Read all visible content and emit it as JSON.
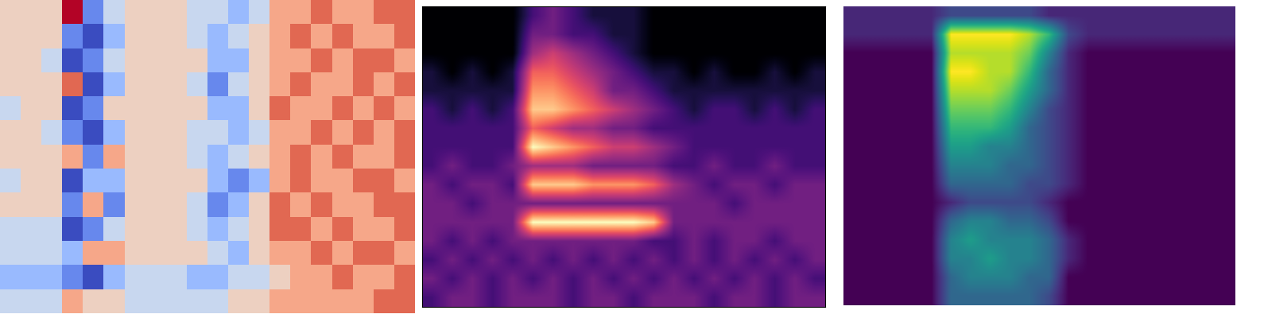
{
  "chart_data": [
    {
      "type": "heatmap",
      "color": "coolwarm",
      "tick_labels": false,
      "cells": [
        [
          6,
          6,
          6,
          9,
          3,
          5,
          6,
          6,
          6,
          5,
          5,
          4,
          5,
          7,
          7,
          8,
          7,
          7,
          8,
          8
        ],
        [
          6,
          6,
          6,
          3,
          2,
          4,
          6,
          6,
          6,
          5,
          4,
          5,
          6,
          7,
          8,
          7,
          8,
          7,
          7,
          8
        ],
        [
          6,
          6,
          5,
          2,
          3,
          5,
          6,
          6,
          6,
          6,
          4,
          4,
          6,
          7,
          7,
          8,
          7,
          8,
          8,
          7
        ],
        [
          6,
          6,
          6,
          8,
          2,
          4,
          6,
          6,
          6,
          5,
          3,
          5,
          6,
          7,
          8,
          7,
          7,
          8,
          7,
          8
        ],
        [
          5,
          6,
          6,
          2,
          3,
          6,
          6,
          6,
          6,
          6,
          4,
          4,
          6,
          8,
          7,
          7,
          8,
          7,
          8,
          7
        ],
        [
          6,
          6,
          5,
          3,
          2,
          4,
          6,
          6,
          6,
          5,
          5,
          4,
          5,
          7,
          7,
          8,
          7,
          8,
          7,
          8
        ],
        [
          6,
          6,
          6,
          7,
          3,
          7,
          6,
          6,
          6,
          5,
          4,
          5,
          6,
          7,
          8,
          7,
          8,
          7,
          7,
          8
        ],
        [
          5,
          6,
          6,
          2,
          4,
          4,
          6,
          6,
          6,
          6,
          4,
          3,
          4,
          7,
          8,
          7,
          7,
          8,
          8,
          7
        ],
        [
          6,
          6,
          6,
          3,
          7,
          3,
          6,
          6,
          6,
          5,
          3,
          4,
          6,
          8,
          7,
          8,
          7,
          7,
          8,
          8
        ],
        [
          5,
          5,
          5,
          2,
          3,
          5,
          6,
          6,
          6,
          5,
          4,
          5,
          6,
          8,
          8,
          7,
          8,
          7,
          7,
          8
        ],
        [
          5,
          5,
          5,
          4,
          7,
          7,
          6,
          6,
          6,
          6,
          5,
          4,
          6,
          7,
          7,
          8,
          7,
          8,
          8,
          7
        ],
        [
          4,
          4,
          4,
          3,
          2,
          4,
          5,
          5,
          5,
          4,
          4,
          5,
          5,
          6,
          7,
          7,
          8,
          7,
          7,
          8
        ],
        [
          5,
          5,
          5,
          7,
          6,
          6,
          5,
          5,
          5,
          5,
          5,
          6,
          6,
          7,
          7,
          7,
          7,
          7,
          8,
          8
        ]
      ]
    },
    {
      "type": "heatmap",
      "color": "magma",
      "tick_labels": false,
      "cells": [
        [
          0,
          0,
          0,
          0,
          0,
          2,
          3,
          2,
          1,
          1,
          1,
          0,
          0,
          0,
          0,
          0,
          0,
          0,
          0,
          0
        ],
        [
          0,
          0,
          0,
          0,
          0,
          3,
          3,
          2,
          2,
          1,
          1,
          0,
          0,
          0,
          0,
          0,
          0,
          0,
          0,
          0
        ],
        [
          0,
          0,
          0,
          0,
          0,
          4,
          5,
          4,
          3,
          2,
          1,
          0,
          0,
          0,
          0,
          0,
          0,
          0,
          0,
          0
        ],
        [
          1,
          0,
          1,
          0,
          1,
          6,
          6,
          5,
          4,
          3,
          2,
          1,
          1,
          0,
          1,
          0,
          0,
          1,
          0,
          1
        ],
        [
          1,
          1,
          1,
          1,
          1,
          7,
          7,
          6,
          5,
          3,
          3,
          2,
          1,
          1,
          1,
          1,
          1,
          1,
          1,
          1
        ],
        [
          2,
          1,
          2,
          1,
          2,
          8,
          8,
          7,
          6,
          5,
          4,
          3,
          2,
          1,
          2,
          2,
          1,
          2,
          1,
          2
        ],
        [
          2,
          2,
          2,
          2,
          2,
          6,
          5,
          4,
          4,
          3,
          3,
          2,
          2,
          2,
          2,
          2,
          2,
          2,
          2,
          2
        ],
        [
          2,
          2,
          2,
          2,
          2,
          9,
          8,
          7,
          6,
          5,
          5,
          4,
          3,
          2,
          2,
          2,
          2,
          2,
          2,
          2
        ],
        [
          2,
          3,
          2,
          2,
          3,
          4,
          4,
          4,
          3,
          3,
          3,
          3,
          2,
          2,
          3,
          2,
          2,
          3,
          2,
          2
        ],
        [
          3,
          2,
          3,
          3,
          2,
          8,
          8,
          8,
          7,
          7,
          7,
          6,
          4,
          3,
          2,
          3,
          3,
          2,
          3,
          3
        ],
        [
          3,
          3,
          2,
          3,
          3,
          3,
          3,
          3,
          3,
          3,
          3,
          3,
          3,
          3,
          3,
          2,
          3,
          3,
          3,
          3
        ],
        [
          3,
          3,
          3,
          3,
          3,
          9,
          9,
          9,
          9,
          9,
          9,
          8,
          3,
          3,
          3,
          3,
          3,
          3,
          3,
          3
        ],
        [
          3,
          2,
          3,
          2,
          3,
          3,
          3,
          3,
          3,
          3,
          3,
          2,
          2,
          3,
          2,
          3,
          3,
          2,
          3,
          3
        ],
        [
          2,
          3,
          2,
          3,
          2,
          3,
          2,
          3,
          2,
          3,
          2,
          3,
          2,
          3,
          2,
          3,
          2,
          3,
          2,
          3
        ],
        [
          3,
          2,
          3,
          2,
          3,
          2,
          3,
          2,
          3,
          2,
          3,
          2,
          3,
          2,
          3,
          2,
          3,
          2,
          3,
          2
        ],
        [
          2,
          3,
          3,
          2,
          3,
          3,
          3,
          2,
          3,
          3,
          2,
          3,
          3,
          3,
          2,
          3,
          3,
          2,
          3,
          3
        ]
      ]
    },
    {
      "type": "heatmap",
      "color": "viridis",
      "tick_labels": false,
      "cells": [
        [
          1,
          1,
          1,
          1,
          1,
          2,
          2,
          2,
          2,
          2,
          1,
          1,
          1,
          1,
          1,
          1,
          1,
          1,
          1,
          1
        ],
        [
          1,
          1,
          1,
          1,
          1,
          9,
          9,
          9,
          9,
          8,
          6,
          2,
          1,
          1,
          1,
          1,
          1,
          1,
          1,
          1
        ],
        [
          0,
          0,
          0,
          0,
          0,
          8,
          8,
          8,
          8,
          7,
          4,
          1,
          0,
          0,
          0,
          0,
          0,
          0,
          0,
          0
        ],
        [
          0,
          0,
          0,
          0,
          0,
          9,
          9,
          8,
          8,
          6,
          3,
          1,
          0,
          0,
          0,
          0,
          0,
          0,
          0,
          0
        ],
        [
          0,
          0,
          0,
          0,
          0,
          8,
          8,
          8,
          7,
          5,
          3,
          1,
          0,
          0,
          0,
          0,
          0,
          0,
          0,
          0
        ],
        [
          0,
          0,
          0,
          0,
          0,
          7,
          7,
          7,
          6,
          4,
          2,
          1,
          0,
          0,
          0,
          0,
          0,
          0,
          0,
          0
        ],
        [
          0,
          0,
          0,
          0,
          0,
          6,
          6,
          6,
          5,
          3,
          2,
          1,
          0,
          0,
          0,
          0,
          0,
          0,
          0,
          0
        ],
        [
          0,
          0,
          0,
          0,
          0,
          5,
          5,
          4,
          4,
          3,
          2,
          1,
          0,
          0,
          0,
          0,
          0,
          0,
          0,
          0
        ],
        [
          0,
          0,
          0,
          0,
          0,
          4,
          4,
          4,
          3,
          3,
          2,
          1,
          0,
          0,
          0,
          0,
          0,
          0,
          0,
          0
        ],
        [
          0,
          0,
          0,
          0,
          0,
          3,
          3,
          3,
          3,
          2,
          2,
          1,
          0,
          0,
          0,
          0,
          0,
          0,
          0,
          0
        ],
        [
          0,
          0,
          0,
          0,
          0,
          1,
          2,
          2,
          2,
          2,
          1,
          0,
          0,
          0,
          0,
          0,
          0,
          0,
          0,
          0
        ],
        [
          0,
          0,
          0,
          0,
          0,
          3,
          4,
          4,
          3,
          3,
          2,
          0,
          0,
          0,
          0,
          0,
          0,
          0,
          0,
          0
        ],
        [
          0,
          0,
          0,
          0,
          0,
          4,
          5,
          4,
          4,
          4,
          3,
          1,
          0,
          0,
          0,
          0,
          0,
          0,
          0,
          0
        ],
        [
          0,
          0,
          0,
          0,
          0,
          4,
          4,
          5,
          4,
          4,
          3,
          1,
          0,
          0,
          0,
          0,
          0,
          0,
          0,
          0
        ],
        [
          0,
          0,
          0,
          0,
          0,
          3,
          4,
          4,
          4,
          3,
          3,
          0,
          0,
          0,
          0,
          0,
          0,
          0,
          0,
          0
        ],
        [
          0,
          0,
          0,
          0,
          0,
          3,
          3,
          3,
          3,
          3,
          2,
          0,
          0,
          0,
          0,
          0,
          0,
          0,
          0,
          0
        ]
      ]
    }
  ]
}
